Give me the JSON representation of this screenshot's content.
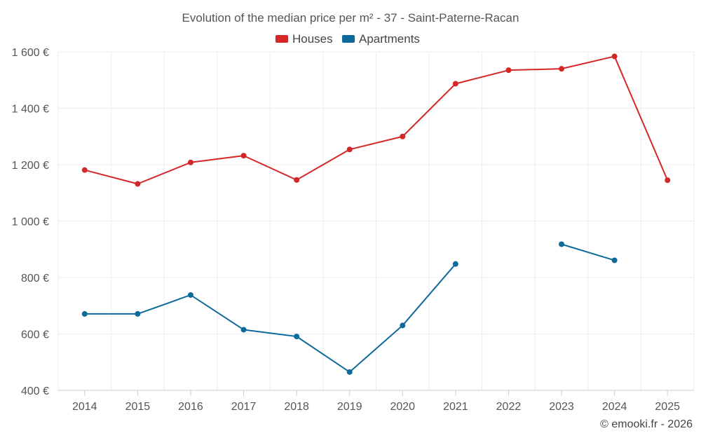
{
  "chart_data": {
    "type": "line",
    "title": "Evolution of the median price per m² - 37 - Saint-Paterne-Racan",
    "categories": [
      "2014",
      "2015",
      "2016",
      "2017",
      "2018",
      "2019",
      "2020",
      "2021",
      "2022",
      "2023",
      "2024",
      "2025"
    ],
    "series": [
      {
        "name": "Houses",
        "color": "#d62728",
        "values": [
          1181,
          1132,
          1208,
          1232,
          1146,
          1254,
          1300,
          1487,
          1535,
          1540,
          1584,
          1145
        ]
      },
      {
        "name": "Apartments",
        "color": "#0f6a9c",
        "values": [
          671,
          671,
          738,
          615,
          591,
          465,
          630,
          848,
          null,
          918,
          861,
          null
        ]
      }
    ],
    "ylim": [
      400,
      1600
    ],
    "yticks": [
      "1 600 €",
      "1 400 €",
      "1 200 €",
      "1 000 €",
      "800 €",
      "600 €",
      "400 €"
    ],
    "ytick_values": [
      1600,
      1400,
      1200,
      1000,
      800,
      600,
      400
    ],
    "xlabel": "",
    "ylabel": "",
    "grid": true,
    "legend_position": "top-center"
  },
  "credit": "© emooki.fr - 2026"
}
